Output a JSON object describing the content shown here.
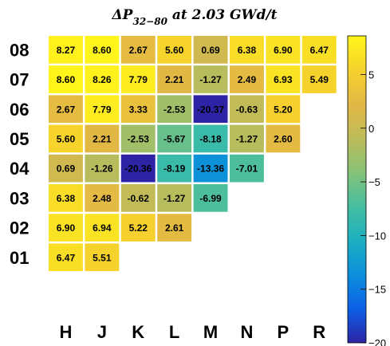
{
  "chart_data": {
    "type": "heatmap",
    "title": {
      "prefix": "ΔP",
      "subscript": "32−80",
      "suffix": " at 2.03 GWd/t"
    },
    "x_labels": [
      "H",
      "J",
      "K",
      "L",
      "M",
      "N",
      "P",
      "R"
    ],
    "y_labels": [
      "08",
      "07",
      "06",
      "05",
      "04",
      "03",
      "02",
      "01"
    ],
    "values": [
      [
        8.27,
        8.6,
        2.67,
        5.6,
        0.69,
        6.38,
        6.9,
        6.47
      ],
      [
        8.6,
        8.26,
        7.79,
        2.21,
        -1.27,
        2.49,
        6.93,
        5.49
      ],
      [
        2.67,
        7.79,
        3.33,
        -2.53,
        -20.37,
        -0.63,
        5.2,
        null
      ],
      [
        5.6,
        2.21,
        -2.53,
        -5.67,
        -8.18,
        -1.27,
        2.6,
        null
      ],
      [
        0.69,
        -1.26,
        -20.36,
        -8.19,
        -13.36,
        -7.01,
        null,
        null
      ],
      [
        6.38,
        2.48,
        -0.62,
        -1.27,
        -6.99,
        null,
        null,
        null
      ],
      [
        6.9,
        6.94,
        5.22,
        2.61,
        null,
        null,
        null,
        null
      ],
      [
        6.47,
        5.51,
        null,
        null,
        null,
        null,
        null,
        null
      ]
    ],
    "value_labels": [
      [
        "8.27",
        "8.60",
        "2.67",
        "5.60",
        "0.69",
        "6.38",
        "6.90",
        "6.47"
      ],
      [
        "8.60",
        "8.26",
        "7.79",
        "2.21",
        "-1.27",
        "2.49",
        "6.93",
        "5.49"
      ],
      [
        "2.67",
        "7.79",
        "3.33",
        "-2.53",
        "-20.37",
        "-0.63",
        "5.20",
        null
      ],
      [
        "5.60",
        "2.21",
        "-2.53",
        "-5.67",
        "-8.18",
        "-1.27",
        "2.60",
        null
      ],
      [
        "0.69",
        "-1.26",
        "-20.36",
        "-8.19",
        "-13.36",
        "-7.01",
        null,
        null
      ],
      [
        "6.38",
        "2.48",
        "-0.62",
        "-1.27",
        "-6.99",
        null,
        null,
        null
      ],
      [
        "6.90",
        "6.94",
        "5.22",
        "2.61",
        null,
        null,
        null,
        null
      ],
      [
        "6.47",
        "5.51",
        null,
        null,
        null,
        null,
        null,
        null
      ]
    ],
    "color_scale": {
      "min": -20,
      "max": 8.6,
      "ticks": [
        5,
        0,
        -5,
        -10,
        -15,
        -20
      ],
      "tick_labels": [
        "5",
        "0",
        "−5",
        "−10",
        "−15",
        "−20"
      ],
      "colormap": [
        "#2c24a4",
        "#0d60e6",
        "#0c8fdc",
        "#1cb0c0",
        "#46bea0",
        "#86c278",
        "#bdbc5a",
        "#e2b845",
        "#f6d22c",
        "#fff51a"
      ]
    }
  }
}
